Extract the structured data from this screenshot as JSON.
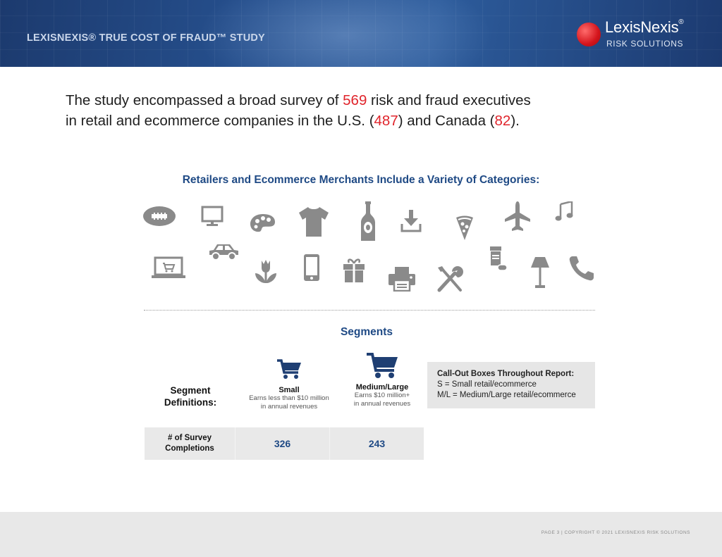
{
  "header": {
    "study_title": "LEXISNEXIS® TRUE COST OF FRAUD™ STUDY",
    "logo": {
      "name": "LexisNexis",
      "registered": "®",
      "subtitle": "RISK SOLUTIONS"
    }
  },
  "intro": {
    "part1": "The study encompassed a broad survey of ",
    "total": "569",
    "part2": " risk and fraud executives",
    "part3": "in retail and ecommerce companies in the U.S. (",
    "us_count": "487",
    "part4": ") and Canada (",
    "canada_count": "82",
    "part5": ")."
  },
  "categories": {
    "title": "Retailers and Ecommerce Merchants Include a Variety of Categories:",
    "icons": [
      "football-icon",
      "monitor-icon",
      "paint-palette-icon",
      "tshirt-icon",
      "bottle-icon",
      "download-icon",
      "pizza-slice-icon",
      "airplane-icon",
      "music-note-icon",
      "laptop-cart-icon",
      "car-icon",
      "tulip-icon",
      "smartphone-icon",
      "gift-icon",
      "printer-icon",
      "tools-icon",
      "pill-bottle-icon",
      "lamp-icon",
      "phone-handset-icon"
    ]
  },
  "segments": {
    "title": "Segments",
    "definitions_label_line1": "Segment",
    "definitions_label_line2": "Definitions:",
    "small": {
      "name": "Small",
      "desc_line1": "Earns less than $10 million",
      "desc_line2": "in annual revenues",
      "completions": "326"
    },
    "medium_large": {
      "name": "Medium/Large",
      "desc_line1": "Earns $10 million+",
      "desc_line2": "in annual revenues",
      "completions": "243"
    },
    "completions_label_line1": "# of Survey",
    "completions_label_line2": "Completions",
    "callout": {
      "title": "Call-Out Boxes Throughout Report:",
      "line1": "S = Small retail/ecommerce",
      "line2": "M/L = Medium/Large retail/ecommerce"
    }
  },
  "footer": {
    "text": "PAGE 3 | COPYRIGHT © 2021 LEXISNEXIS RISK SOLUTIONS"
  },
  "colors": {
    "accent_red": "#e0242b",
    "navy": "#1f4a85",
    "icon_gray": "#8a8a8a",
    "header_blue": "#26508e"
  }
}
